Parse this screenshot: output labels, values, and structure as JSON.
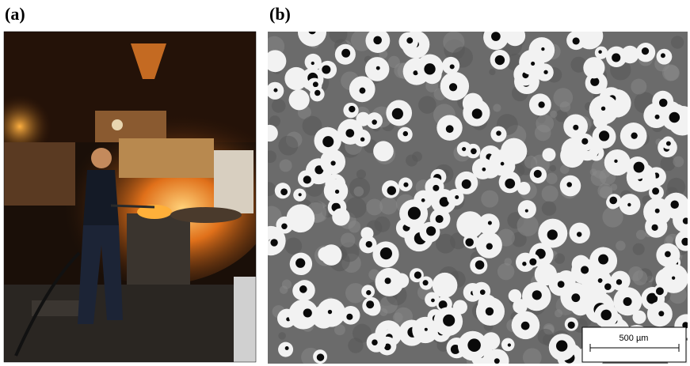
{
  "panels": [
    {
      "label": "(a)"
    },
    {
      "label": "(b)",
      "scale_bar": "500 µm"
    }
  ]
}
